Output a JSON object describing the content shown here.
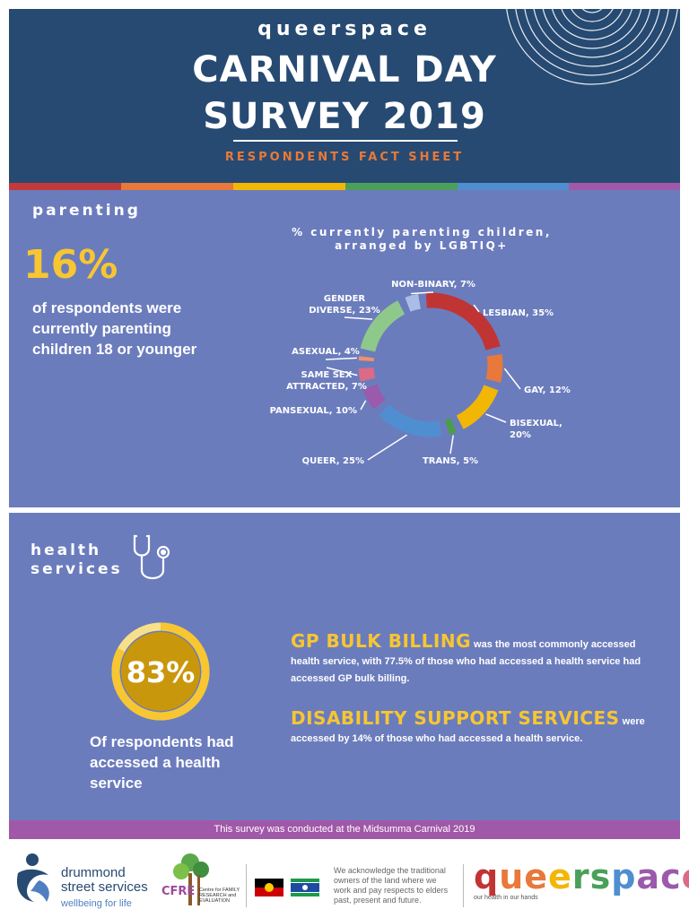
{
  "header": {
    "brand": "queerspace",
    "title_line1": "CARNIVAL DAY",
    "title_line2": "SURVEY 2019",
    "subtitle": "RESPONDENTS FACT SHEET"
  },
  "colors": {
    "header_bg": "#274a72",
    "panel_bg": "#6b7cbd",
    "accent_yellow": "#f7c631",
    "accent_orange": "#e8793a",
    "footer_purple": "#a058a8",
    "rainbow": [
      "#c33a3a",
      "#e8793a",
      "#f2b705",
      "#4aa05a",
      "#4f8fd1",
      "#a058a8"
    ]
  },
  "parenting": {
    "section_title": "parenting",
    "stat": "16%",
    "description": "of respondents were currently parenting children 18 or younger"
  },
  "chart_data": {
    "type": "pie",
    "title": "% currently parenting children, arranged by LGBTIQ+",
    "categories": [
      "Lesbian",
      "Gay",
      "Bisexual",
      "Trans",
      "Queer",
      "Pansexual",
      "Same sex attracted",
      "Asexual",
      "Gender diverse",
      "Non-binary"
    ],
    "values": [
      35,
      12,
      20,
      5,
      25,
      10,
      7,
      4,
      23,
      7
    ],
    "unit": "%",
    "labels": [
      [
        "LESBIAN, 35%"
      ],
      [
        "GAY, 12%"
      ],
      [
        "BISEXUAL,",
        "20%"
      ],
      [
        "TRANS, 5%"
      ],
      [
        "QUEER, 25%"
      ],
      [
        "PANSEXUAL, 10%"
      ],
      [
        "SAME SEX",
        "ATTRACTED, 7%"
      ],
      [
        "ASEXUAL, 4%"
      ],
      [
        "GENDER",
        "DIVERSE, 23%"
      ],
      [
        "NON-BINARY, 7%"
      ]
    ],
    "colors": [
      "#c13434",
      "#e8793a",
      "#f2b705",
      "#4a9d4a",
      "#4f8fd1",
      "#9b5aab",
      "#d96b86",
      "#f0926a",
      "#8ec98b",
      "#a9bde6"
    ]
  },
  "health": {
    "section_title_line1": "health",
    "section_title_line2": "services",
    "stat": "83%",
    "stat_fraction": 0.83,
    "description": "Of respondents had accessed a health service",
    "gp_heading": "GP BULK BILLING",
    "gp_text": " was the most commonly accessed health service, with 77.5% of those who had accessed a health service had accessed GP bulk billing.",
    "disability_heading": "DISABILITY SUPPORT SERVICES",
    "disability_text": " were accessed by 14% of those who had accessed a health service."
  },
  "footer": {
    "banner": "This survey was conducted at the Midsumma Carnival 2019",
    "ds_name_line1": "drummond",
    "ds_name_line2": "street services",
    "ds_tagline": "wellbeing for life",
    "cfre_letters": "CFRE",
    "cfre_text": "Centre for FAMILY RESEARCH and EVALUATION",
    "acknowledgement": "We acknowledge the traditional owners of the land where we work and pay respects to elders past, present and future.",
    "qs_logo": "queerspace",
    "qs_tagline": "our health in our hands"
  }
}
